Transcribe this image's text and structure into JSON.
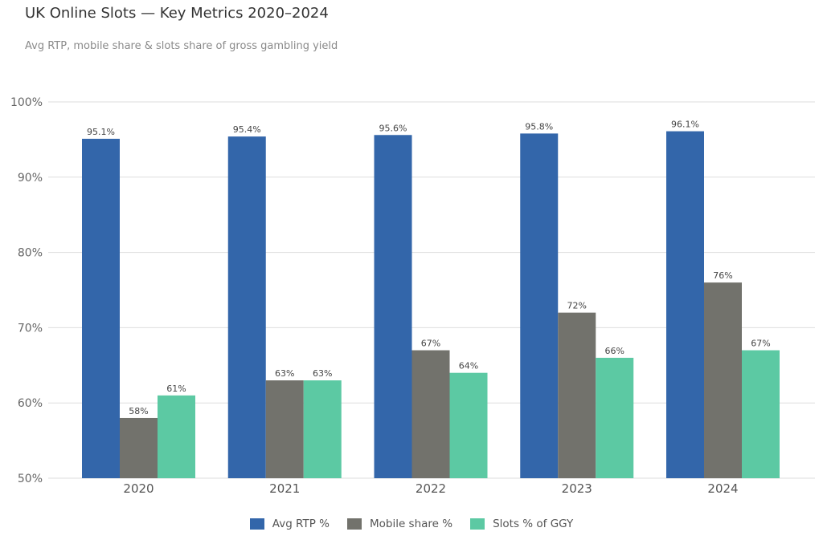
{
  "title": "UK Online Slots — Key Metrics 2020–2024",
  "subtitle": "Avg RTP, mobile share & slots share of gross gambling yield",
  "chart_data": {
    "type": "bar",
    "categories": [
      "2020",
      "2021",
      "2022",
      "2023",
      "2024"
    ],
    "series": [
      {
        "name": "Avg RTP %",
        "values": [
          95.1,
          95.4,
          95.6,
          95.8,
          96.1
        ],
        "labels": [
          "95.1%",
          "95.4%",
          "95.6%",
          "95.8%",
          "96.1%"
        ],
        "color": "#3366AA"
      },
      {
        "name": "Mobile share %",
        "values": [
          58,
          63,
          67,
          72,
          76
        ],
        "labels": [
          "58%",
          "63%",
          "67%",
          "72%",
          "76%"
        ],
        "color": "#72726C"
      },
      {
        "name": "Slots % of GGY",
        "values": [
          61,
          63,
          64,
          66,
          67
        ],
        "labels": [
          "61%",
          "63%",
          "64%",
          "66%",
          "67%"
        ],
        "color": "#5CC9A3"
      }
    ],
    "ylim": [
      50,
      100
    ],
    "yticks": [
      "50%",
      "60%",
      "70%",
      "80%",
      "90%",
      "100%"
    ],
    "grid": true,
    "legend_position": "bottom"
  }
}
